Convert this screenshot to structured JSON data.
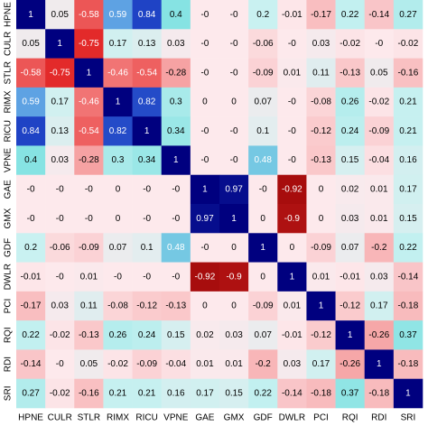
{
  "chart_data": {
    "type": "heatmap",
    "categories": [
      "HPNE",
      "CULR",
      "STLR",
      "RIMX",
      "RICU",
      "VPNE",
      "GAE",
      "GMX",
      "GDF",
      "DWLR",
      "PCI",
      "RQI",
      "RDI",
      "SRI"
    ],
    "values": [
      [
        1,
        0.05,
        -0.58,
        0.59,
        0.84,
        0.4,
        0,
        0,
        0.2,
        -0.01,
        -0.17,
        0.22,
        -0.14,
        0.27
      ],
      [
        0.05,
        1,
        -0.75,
        0.17,
        0.13,
        0.03,
        0,
        0,
        -0.06,
        0,
        0.03,
        -0.02,
        0,
        -0.02
      ],
      [
        -0.58,
        -0.75,
        1,
        -0.46,
        -0.54,
        -0.28,
        0,
        0,
        -0.09,
        0.01,
        0.11,
        -0.13,
        0.05,
        -0.16
      ],
      [
        0.59,
        0.17,
        -0.46,
        1,
        0.82,
        0.3,
        0,
        0,
        0.07,
        0,
        -0.08,
        0.26,
        -0.02,
        0.21
      ],
      [
        0.84,
        0.13,
        -0.54,
        0.82,
        1,
        0.34,
        0,
        0,
        0.1,
        0,
        -0.12,
        0.24,
        -0.09,
        0.21
      ],
      [
        0.4,
        0.03,
        -0.28,
        0.3,
        0.34,
        1,
        0,
        0,
        0.48,
        0,
        -0.13,
        0.15,
        -0.04,
        0.16
      ],
      [
        0,
        0,
        0,
        0,
        0,
        0,
        1,
        0.97,
        0,
        -0.92,
        0,
        0.02,
        0.01,
        0.17
      ],
      [
        0,
        0,
        0,
        0,
        0,
        0,
        0.97,
        1,
        0,
        -0.9,
        0,
        0.03,
        0.01,
        0.15
      ],
      [
        0.2,
        -0.06,
        -0.09,
        0.07,
        0.1,
        0.48,
        0,
        0,
        1,
        0,
        -0.09,
        0.07,
        -0.2,
        0.22
      ],
      [
        -0.01,
        0,
        0.01,
        0,
        0,
        0,
        -0.92,
        -0.9,
        0,
        1,
        0.01,
        -0.01,
        0.03,
        -0.14
      ],
      [
        -0.17,
        0.03,
        0.11,
        -0.08,
        -0.12,
        -0.13,
        0,
        0,
        -0.09,
        0.01,
        1,
        -0.12,
        0.17,
        -0.18
      ],
      [
        0.22,
        -0.02,
        -0.13,
        0.26,
        0.24,
        0.15,
        0.02,
        0.03,
        0.07,
        -0.01,
        -0.12,
        1,
        -0.26,
        0.37
      ],
      [
        -0.14,
        0,
        0.05,
        -0.02,
        -0.09,
        -0.04,
        0.01,
        0.01,
        -0.2,
        0.03,
        0.17,
        -0.26,
        1,
        -0.18
      ],
      [
        0.27,
        -0.02,
        -0.16,
        0.21,
        0.21,
        0.16,
        0.17,
        0.15,
        0.22,
        -0.14,
        -0.18,
        0.37,
        -0.18,
        1
      ]
    ],
    "value_labels": [
      [
        "1",
        "0.05",
        "-0.58",
        "0.59",
        "0.84",
        "0.4",
        "-0",
        "-0",
        "0.2",
        "-0.01",
        "-0.17",
        "0.22",
        "-0.14",
        "0.27"
      ],
      [
        "0.05",
        "1",
        "-0.75",
        "0.17",
        "0.13",
        "0.03",
        "-0",
        "-0",
        "-0.06",
        "-0",
        "0.03",
        "-0.02",
        "-0",
        "-0.02"
      ],
      [
        "-0.58",
        "-0.75",
        "1",
        "-0.46",
        "-0.54",
        "-0.28",
        "-0",
        "-0",
        "-0.09",
        "0.01",
        "0.11",
        "-0.13",
        "0.05",
        "-0.16"
      ],
      [
        "0.59",
        "0.17",
        "-0.46",
        "1",
        "0.82",
        "0.3",
        "0",
        "0",
        "0.07",
        "-0",
        "-0.08",
        "0.26",
        "-0.02",
        "0.21"
      ],
      [
        "0.84",
        "0.13",
        "-0.54",
        "0.82",
        "1",
        "0.34",
        "-0",
        "-0",
        "0.1",
        "-0",
        "-0.12",
        "0.24",
        "-0.09",
        "0.21"
      ],
      [
        "0.4",
        "0.03",
        "-0.28",
        "0.3",
        "0.34",
        "1",
        "-0",
        "-0",
        "0.48",
        "-0",
        "-0.13",
        "0.15",
        "-0.04",
        "0.16"
      ],
      [
        "-0",
        "-0",
        "-0",
        "0",
        "-0",
        "-0",
        "1",
        "0.97",
        "-0",
        "-0.92",
        "0",
        "0.02",
        "0.01",
        "0.17"
      ],
      [
        "-0",
        "-0",
        "-0",
        "0",
        "-0",
        "-0",
        "0.97",
        "1",
        "0",
        "-0.9",
        "0",
        "0.03",
        "0.01",
        "0.15"
      ],
      [
        "0.2",
        "-0.06",
        "-0.09",
        "0.07",
        "0.1",
        "0.48",
        "-0",
        "0",
        "1",
        "0",
        "-0.09",
        "0.07",
        "-0.2",
        "0.22"
      ],
      [
        "-0.01",
        "-0",
        "0.01",
        "-0",
        "-0",
        "-0",
        "-0.92",
        "-0.9",
        "0",
        "1",
        "0.01",
        "-0.01",
        "0.03",
        "-0.14"
      ],
      [
        "-0.17",
        "0.03",
        "0.11",
        "-0.08",
        "-0.12",
        "-0.13",
        "0",
        "0",
        "-0.09",
        "0.01",
        "1",
        "-0.12",
        "0.17",
        "-0.18"
      ],
      [
        "0.22",
        "-0.02",
        "-0.13",
        "0.26",
        "0.24",
        "0.15",
        "0.02",
        "0.03",
        "0.07",
        "-0.01",
        "-0.12",
        "1",
        "-0.26",
        "0.37"
      ],
      [
        "-0.14",
        "-0",
        "0.05",
        "-0.02",
        "-0.09",
        "-0.04",
        "0.01",
        "0.01",
        "-0.2",
        "0.03",
        "0.17",
        "-0.26",
        "1",
        "-0.18"
      ],
      [
        "0.27",
        "-0.02",
        "-0.16",
        "0.21",
        "0.21",
        "0.16",
        "0.17",
        "0.15",
        "0.22",
        "-0.14",
        "-0.18",
        "0.37",
        "-0.18",
        "1"
      ]
    ],
    "colorscale": [
      [
        -1,
        "#8b0000"
      ],
      [
        -0.75,
        "#e32a2a"
      ],
      [
        -0.5,
        "#f06a6a"
      ],
      [
        0,
        "#fde9ec"
      ],
      [
        0.2,
        "#c9f1f1"
      ],
      [
        0.4,
        "#86e3e3"
      ],
      [
        0.6,
        "#5c9fe3"
      ],
      [
        0.85,
        "#1c3fc4"
      ],
      [
        1,
        "#00007f"
      ]
    ]
  }
}
